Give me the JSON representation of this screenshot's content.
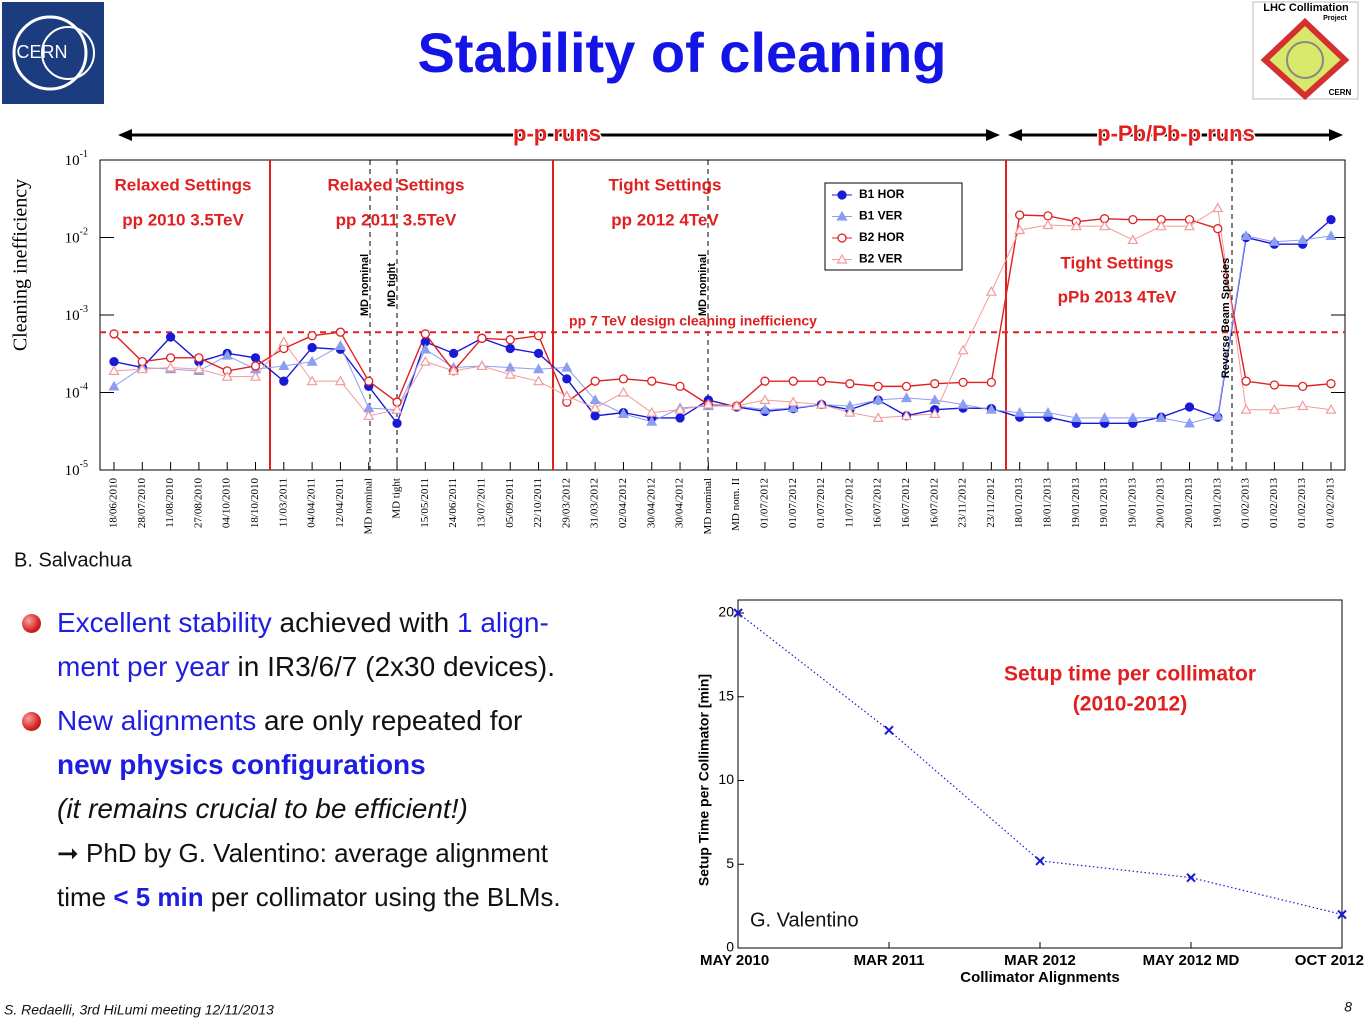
{
  "header": {
    "title": "Stability of cleaning"
  },
  "logos": {
    "left": "CERN",
    "right": [
      "LHC Collimation",
      "Project",
      "CERN"
    ]
  },
  "credits": [
    "B. Salvachua",
    "G. Valentino"
  ],
  "bullets": [
    [
      "Excellent stability",
      " achieved with ",
      "1 align-",
      "ment per year",
      " in IR3/6/7 (2x30 devices)."
    ],
    [
      "New alignments",
      " are only repeated for",
      "new physics configurations",
      "(it remains crucial to be efficient!)",
      "➞ PhD by G. Valentino: average alignment",
      "time ",
      "< 5 min",
      " per collimator using the BLMs."
    ]
  ],
  "footer": {
    "left": "S. Redaelli, 3rd HiLumi meeting 12/11/2013",
    "page": "8"
  },
  "chart_data": [
    {
      "type": "line",
      "ylabel": "Cleaning inefficiency",
      "log_y": true,
      "ylim": [
        1e-05,
        0.1
      ],
      "yticks": [
        {
          "value": 0.1,
          "label": "10-1"
        },
        {
          "value": 0.01,
          "label": "10-2"
        },
        {
          "value": 0.001,
          "label": "10-3"
        },
        {
          "value": 0.0001,
          "label": "10-4"
        },
        {
          "value": 1e-05,
          "label": "10-5"
        }
      ],
      "categories": [
        "18/06/2010",
        "28/07/2010",
        "11/08/2010",
        "27/08/2010",
        "04/10/2010",
        "18/10/2010",
        "11/03/2011",
        "04/04/2011",
        "12/04/2011",
        "MD nominal",
        "MD tight",
        "15/05/2011",
        "24/06/2011",
        "13/07/2011",
        "05/09/2011",
        "22/10/2011",
        "29/03/2012",
        "31/03/2012",
        "02/04/2012",
        "30/04/2012",
        "30/04/2012",
        "MD nominal",
        "MD nom. II",
        "01/07/2012",
        "01/07/2012",
        "01/07/2012",
        "11/07/2012",
        "16/07/2012",
        "16/07/2012",
        "16/07/2012",
        "23/11/2012",
        "23/11/2012",
        "18/01/2013",
        "18/01/2013",
        "19/01/2013",
        "19/01/2013",
        "19/01/2013",
        "20/01/2013",
        "20/01/2013",
        "19/01/2013",
        "01/02/2013",
        "01/02/2013",
        "01/02/2013",
        "01/02/2013"
      ],
      "series": [
        {
          "name": "B1 HOR",
          "color": "#1a1ad6",
          "marker": "circle",
          "filled": true,
          "values": [
            0.00025,
            0.00021,
            0.00052,
            0.00025,
            0.00032,
            0.00028,
            0.00014,
            0.00038,
            0.00036,
            0.00012,
            4e-05,
            0.00045,
            0.00032,
            0.0005,
            0.00037,
            0.00032,
            0.00015,
            5e-05,
            5.5e-05,
            4.7e-05,
            4.7e-05,
            8e-05,
            6.5e-05,
            5.7e-05,
            6.2e-05,
            7e-05,
            6e-05,
            8e-05,
            5e-05,
            6e-05,
            6.3e-05,
            6.2e-05,
            4.8e-05,
            4.8e-05,
            4e-05,
            4e-05,
            4e-05,
            4.8e-05,
            6.5e-05,
            4.8e-05,
            0.01,
            0.0082,
            0.0082,
            0.017
          ]
        },
        {
          "name": "B1 VER",
          "color": "#8c9ef0",
          "marker": "triangle",
          "filled": true,
          "values": [
            0.00012,
            0.00021,
            0.0002,
            0.00019,
            0.0003,
            0.0002,
            0.00022,
            0.00025,
            0.0004,
            6.3e-05,
            6e-05,
            0.00036,
            0.00021,
            0.00022,
            0.00021,
            0.0002,
            0.00021,
            8e-05,
            5.3e-05,
            4.2e-05,
            6.3e-05,
            6.7e-05,
            6.7e-05,
            6e-05,
            6.3e-05,
            7e-05,
            6.7e-05,
            8e-05,
            8.5e-05,
            8e-05,
            7e-05,
            6e-05,
            5.5e-05,
            5.5e-05,
            4.7e-05,
            4.7e-05,
            4.7e-05,
            4.7e-05,
            4e-05,
            5e-05,
            0.0105,
            0.0088,
            0.0093,
            0.0105
          ]
        },
        {
          "name": "B2 HOR",
          "color": "#e02020",
          "marker": "circle",
          "filled": false,
          "values": [
            0.00057,
            0.00025,
            0.00028,
            0.00028,
            0.00019,
            0.00022,
            0.00037,
            0.00054,
            0.0006,
            0.00014,
            7.5e-05,
            0.00057,
            0.00019,
            0.0005,
            0.00048,
            0.00054,
            7.5e-05,
            0.00014,
            0.00015,
            0.00014,
            0.00012,
            7e-05,
            6.7e-05,
            0.00014,
            0.00014,
            0.00014,
            0.00013,
            0.00012,
            0.00012,
            0.00013,
            0.000135,
            0.000135,
            0.0195,
            0.019,
            0.016,
            0.0175,
            0.017,
            0.017,
            0.017,
            0.013,
            0.00014,
            0.000125,
            0.00012,
            0.00013
          ]
        },
        {
          "name": "B2 VER",
          "color": "#f29a9a",
          "marker": "triangle",
          "filled": false,
          "values": [
            0.00019,
            0.0002,
            0.00021,
            0.0002,
            0.00016,
            0.00016,
            0.00045,
            0.00014,
            0.00014,
            5e-05,
            6e-05,
            0.00025,
            0.00019,
            0.00022,
            0.00017,
            0.00014,
            9e-05,
            6.3e-05,
            0.0001,
            5.5e-05,
            6e-05,
            7e-05,
            6.7e-05,
            8e-05,
            7.5e-05,
            7e-05,
            5.5e-05,
            4.7e-05,
            5e-05,
            5.3e-05,
            0.00035,
            0.002,
            0.0125,
            0.0145,
            0.014,
            0.014,
            0.0093,
            0.014,
            0.014,
            0.024,
            6e-05,
            6e-05,
            6.7e-05,
            6e-05
          ]
        }
      ],
      "reference_line": 0.0006,
      "annotations": [
        "Relaxed Settings",
        "pp 2010  3.5TeV",
        "Relaxed Settings",
        "pp 2011  3.5TeV",
        "Tight Settings",
        "pp 2012  4TeV",
        "Tight Settings",
        "pPb 2013  4TeV",
        "pp 7 TeV design cleaning inefficiency",
        "p-p runs",
        "p-Pb/Pb-p runs",
        "MD nominal",
        "MD tight",
        "MD nominal",
        "Reverse Beam Species"
      ]
    },
    {
      "type": "line",
      "title": [
        "Setup time per collimator",
        "(2010-2012)"
      ],
      "xlabel": "Collimator Alignments",
      "ylabel": "Setup Time per Collimator [min]",
      "categories": [
        "MAY 2010",
        "MAR 2011",
        "MAR 2012",
        "MAY 2012 MD",
        "OCT 2012"
      ],
      "values": [
        20,
        13,
        5.2,
        4.2,
        2
      ],
      "color": "#1a1ad6",
      "ylim": [
        0,
        20
      ],
      "yticks": [
        0,
        5,
        10,
        15,
        20
      ]
    }
  ]
}
